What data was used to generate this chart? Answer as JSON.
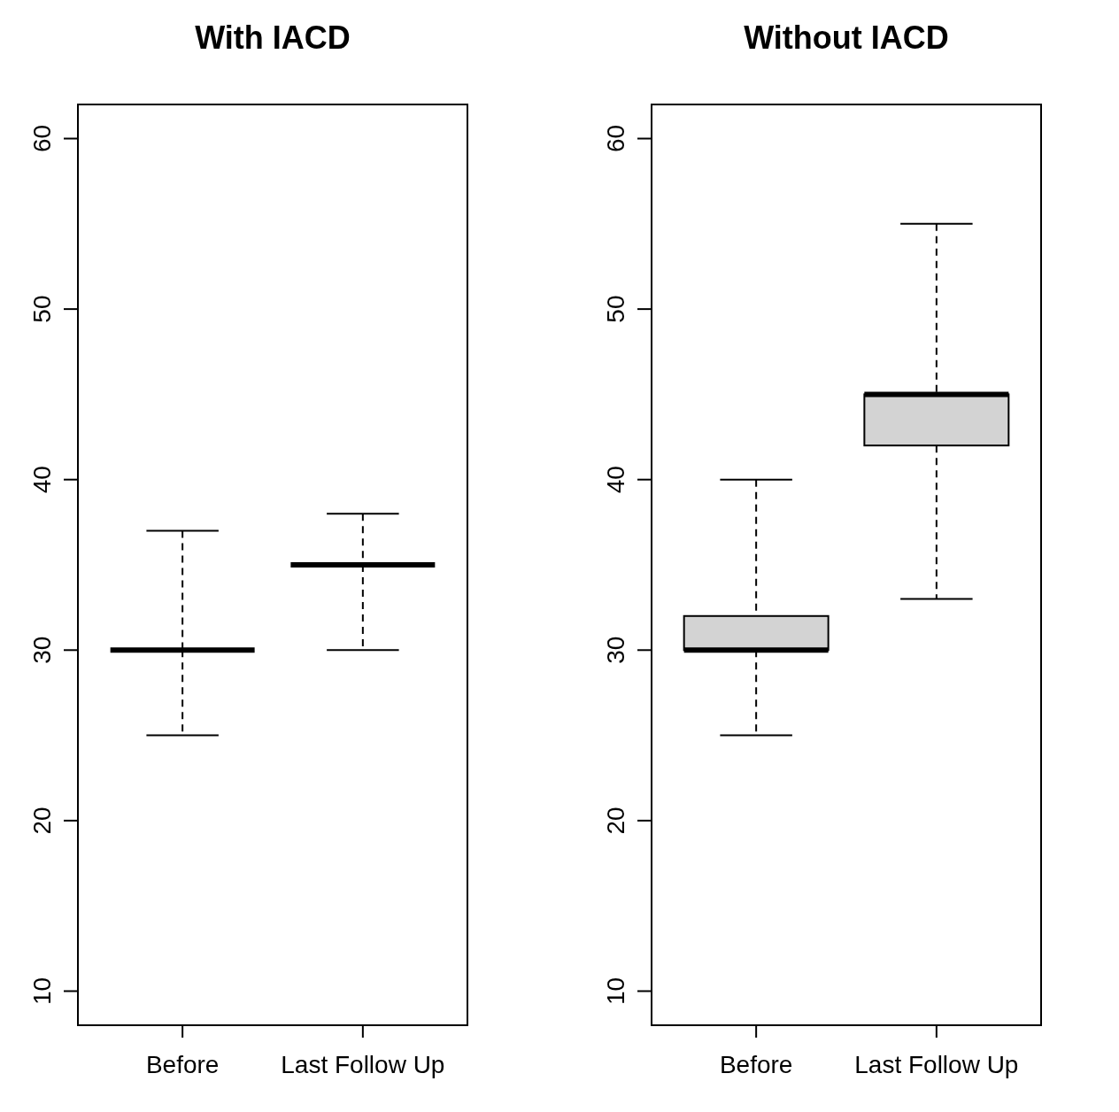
{
  "chart_data": [
    {
      "type": "box",
      "title": "With IACD",
      "categories": [
        "Before",
        "Last Follow Up"
      ],
      "ylim": [
        8,
        62
      ],
      "yticks": [
        10,
        20,
        30,
        40,
        50,
        60
      ],
      "boxes": [
        {
          "low": 25,
          "q1": 30,
          "median": 30,
          "q3": 30,
          "high": 37
        },
        {
          "low": 30,
          "q1": 35,
          "median": 35,
          "q3": 35,
          "high": 38
        }
      ]
    },
    {
      "type": "box",
      "title": "Without IACD",
      "categories": [
        "Before",
        "Last Follow Up"
      ],
      "ylim": [
        8,
        62
      ],
      "yticks": [
        10,
        20,
        30,
        40,
        50,
        60
      ],
      "color": "#d3d3d3",
      "boxes": [
        {
          "low": 25,
          "q1": 30,
          "median": 30,
          "q3": 32,
          "high": 40
        },
        {
          "low": 33,
          "q1": 42,
          "median": 45,
          "q3": 45,
          "high": 55
        }
      ]
    }
  ]
}
